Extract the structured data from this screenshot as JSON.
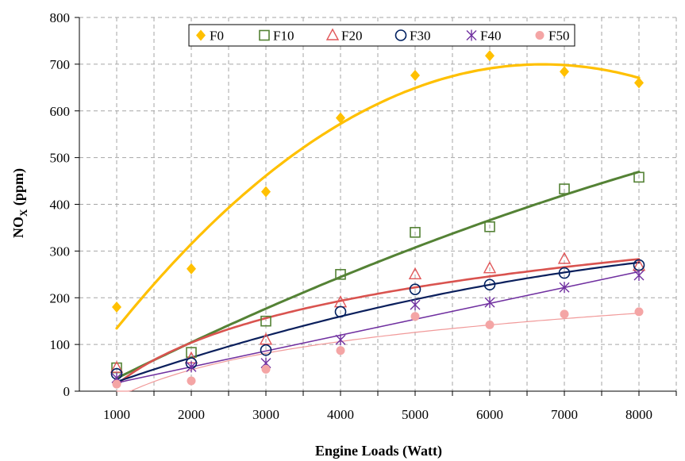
{
  "chart_data": {
    "type": "scatter",
    "xlabel": "Engine Loads (Watt)",
    "ylabel": {
      "main": "NO",
      "sub": "X",
      "unit": " (ppm)"
    },
    "x": [
      1000,
      2000,
      3000,
      4000,
      5000,
      6000,
      7000,
      8000
    ],
    "xlim": [
      500,
      8500
    ],
    "ylim": [
      0,
      800
    ],
    "xticks": [
      1000,
      2000,
      3000,
      4000,
      5000,
      6000,
      7000,
      8000
    ],
    "yticks": [
      0,
      100,
      200,
      300,
      400,
      500,
      600,
      700,
      800
    ],
    "grid": true,
    "legend_position": "top",
    "series": [
      {
        "name": "F0",
        "marker": "diamond",
        "color": "#FFC000",
        "values": [
          180,
          262,
          427,
          585,
          676,
          718,
          684,
          660
        ],
        "trend": {
          "type": "poly2",
          "color": "#FFC000",
          "width": 3.2
        }
      },
      {
        "name": "F10",
        "marker": "square-open",
        "color": "#548235",
        "values": [
          50,
          83,
          150,
          250,
          340,
          352,
          433,
          458
        ],
        "trend": {
          "type": "poly2",
          "color": "#548235",
          "width": 3
        }
      },
      {
        "name": "F20",
        "marker": "triangle-open",
        "color": "#E15759",
        "values": [
          50,
          70,
          110,
          190,
          250,
          263,
          283,
          268
        ],
        "trend": {
          "type": "log",
          "color": "#D9534F",
          "width": 2.6
        }
      },
      {
        "name": "F30",
        "marker": "circle-open",
        "color": "#002060",
        "values": [
          37,
          60,
          88,
          170,
          218,
          228,
          253,
          270
        ],
        "trend": {
          "type": "poly2",
          "color": "#0A1F5C",
          "width": 2.2
        }
      },
      {
        "name": "F40",
        "marker": "star",
        "color": "#7030A0",
        "values": [
          28,
          52,
          60,
          110,
          185,
          190,
          222,
          248
        ],
        "trend": {
          "type": "linear",
          "color": "#7030A0",
          "width": 1.6
        }
      },
      {
        "name": "F50",
        "marker": "circle-filled",
        "color": "#F4A5A5",
        "values": [
          15,
          22,
          47,
          87,
          160,
          142,
          165,
          170
        ],
        "trend": {
          "type": "log",
          "color": "#F19A9A",
          "width": 1.2
        }
      }
    ]
  }
}
